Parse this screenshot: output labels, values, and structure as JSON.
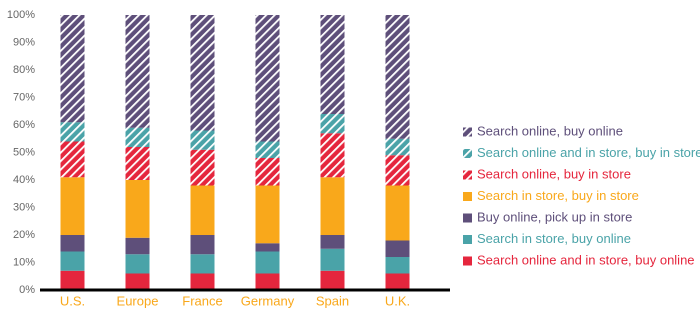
{
  "chart_data": {
    "type": "stacked_bar",
    "categories": [
      "U.S.",
      "Europe",
      "France",
      "Germany",
      "Spain",
      "U.K."
    ],
    "series": [
      {
        "name": "Search online and in store, buy online",
        "color": "#e5263d",
        "hatch": false,
        "values": [
          7,
          6,
          6,
          6,
          7,
          6
        ]
      },
      {
        "name": "Search in store, buy online",
        "color": "#4aa3a8",
        "hatch": false,
        "values": [
          7,
          7,
          7,
          8,
          8,
          6
        ]
      },
      {
        "name": "Buy online, pick up in store",
        "color": "#5e4f7a",
        "hatch": false,
        "values": [
          6,
          6,
          7,
          3,
          5,
          6
        ]
      },
      {
        "name": "Search in store, buy in store",
        "color": "#f9a81b",
        "hatch": false,
        "values": [
          21,
          21,
          18,
          21,
          21,
          20
        ]
      },
      {
        "name": "Search online, buy in store",
        "color": "#e5263d",
        "hatch": true,
        "values": [
          13,
          12,
          13,
          10,
          16,
          11
        ]
      },
      {
        "name": "Search online and in store, buy in store",
        "color": "#4aa3a8",
        "hatch": true,
        "values": [
          7,
          7,
          7,
          6,
          7,
          6
        ]
      },
      {
        "name": "Search online, buy online",
        "color": "#5e4f7a",
        "hatch": true,
        "values": [
          39,
          41,
          42,
          46,
          36,
          45
        ]
      }
    ],
    "ylim": [
      0,
      100
    ],
    "yticks": [
      {
        "value": 0,
        "label": "0%"
      },
      {
        "value": 10,
        "label": "10%"
      },
      {
        "value": 20,
        "label": "20%"
      },
      {
        "value": 30,
        "label": "30%"
      },
      {
        "value": 40,
        "label": "40%"
      },
      {
        "value": 50,
        "label": "50%"
      },
      {
        "value": 60,
        "label": "60%"
      },
      {
        "value": 70,
        "label": "70%"
      },
      {
        "value": 80,
        "label": "80%"
      },
      {
        "value": 90,
        "label": "90%"
      },
      {
        "value": 100,
        "label": "100%"
      }
    ],
    "category_color": "#f9a81b"
  }
}
